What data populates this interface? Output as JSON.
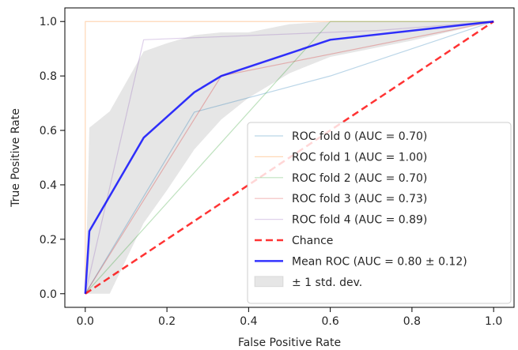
{
  "chart_data": {
    "type": "line",
    "title": "",
    "xlabel": "False Positive Rate",
    "ylabel": "True Positive Rate",
    "xlim": [
      -0.05,
      1.05
    ],
    "ylim": [
      -0.05,
      1.05
    ],
    "xticks": [
      "0.0",
      "0.2",
      "0.4",
      "0.6",
      "0.8",
      "1.0"
    ],
    "yticks": [
      "0.0",
      "0.2",
      "0.4",
      "0.6",
      "0.8",
      "1.0"
    ],
    "grid": false,
    "legend_position": "lower right",
    "series": [
      {
        "name": "ROC fold 0 (AUC = 0.70)",
        "color": "#1f77b4",
        "style": "thin",
        "x": [
          0.0,
          0.267,
          0.6,
          1.0
        ],
        "y": [
          0.0,
          0.667,
          0.8,
          1.0
        ]
      },
      {
        "name": "ROC fold 1 (AUC = 1.00)",
        "color": "#ff7f0e",
        "style": "thin",
        "x": [
          0.0,
          0.0,
          1.0
        ],
        "y": [
          0.0,
          1.0,
          1.0
        ]
      },
      {
        "name": "ROC fold 2 (AUC = 0.70)",
        "color": "#2ca02c",
        "style": "thin",
        "x": [
          0.0,
          0.6,
          1.0
        ],
        "y": [
          0.0,
          1.0,
          1.0
        ]
      },
      {
        "name": "ROC fold 3 (AUC = 0.73)",
        "color": "#d62728",
        "style": "thin",
        "x": [
          0.0,
          0.333,
          0.6,
          1.0
        ],
        "y": [
          0.0,
          0.8,
          0.88,
          1.0
        ]
      },
      {
        "name": "ROC fold 4 (AUC = 0.89)",
        "color": "#9467bd",
        "style": "thin",
        "x": [
          0.0,
          0.143,
          0.714,
          1.0
        ],
        "y": [
          0.0,
          0.933,
          0.967,
          1.0
        ]
      },
      {
        "name": "Chance",
        "color": "#ff0000",
        "style": "dashed",
        "x": [
          0.0,
          1.0
        ],
        "y": [
          0.0,
          1.0
        ]
      },
      {
        "name": "Mean ROC (AUC = 0.80 ± 0.12)",
        "color": "#0000ff",
        "style": "mean",
        "x": [
          0.0,
          0.01,
          0.143,
          0.267,
          0.333,
          0.6,
          1.0
        ],
        "y": [
          0.0,
          0.23,
          0.573,
          0.74,
          0.8,
          0.933,
          1.0
        ]
      }
    ],
    "std_band": {
      "name": "± 1 std. dev.",
      "color": "#808080",
      "x": [
        0.0,
        0.01,
        0.06,
        0.143,
        0.2,
        0.267,
        0.333,
        0.4,
        0.5,
        0.6,
        0.8,
        1.0
      ],
      "upper": [
        0.0,
        0.61,
        0.67,
        0.89,
        0.92,
        0.95,
        0.96,
        0.96,
        0.99,
        1.0,
        1.0,
        1.0
      ],
      "lower": [
        0.0,
        0.0,
        0.0,
        0.26,
        0.38,
        0.53,
        0.64,
        0.72,
        0.81,
        0.87,
        0.93,
        1.0
      ]
    }
  }
}
